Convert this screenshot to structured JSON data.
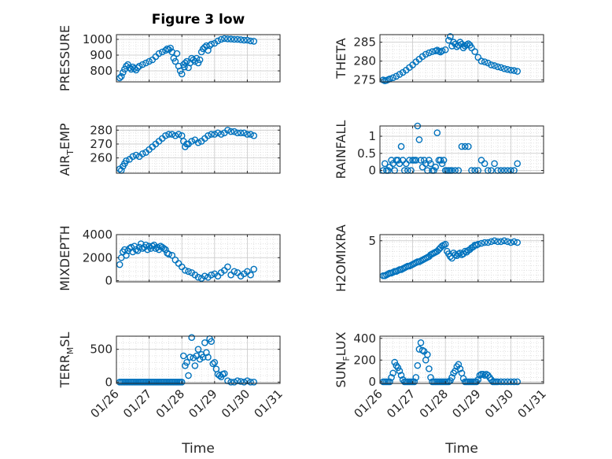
{
  "figure": {
    "title": "Figure 3 low",
    "marker_color": "#0072BD",
    "x_tick_labels": [
      "01/26",
      "01/27",
      "01/28",
      "01/29",
      "01/30",
      "01/31"
    ],
    "x_label": "Time"
  },
  "chart_data": [
    {
      "type": "scatter",
      "name": "pressure",
      "title": "Figure 3 low",
      "ylabel": "PRESSURE",
      "xlim": [
        0,
        5
      ],
      "ylim": [
        730,
        1030
      ],
      "yticks": [
        800,
        900,
        1000
      ],
      "ytick_labels": [
        "800",
        "900",
        "1000"
      ],
      "grid": true,
      "minor_grid": true,
      "x": [
        0.1,
        0.15,
        0.2,
        0.25,
        0.3,
        0.35,
        0.4,
        0.45,
        0.5,
        0.55,
        0.6,
        0.65,
        0.7,
        0.8,
        0.9,
        1.0,
        1.1,
        1.2,
        1.3,
        1.4,
        1.5,
        1.55,
        1.6,
        1.65,
        1.7,
        1.75,
        1.8,
        1.85,
        1.9,
        1.95,
        2.0,
        2.05,
        2.08,
        2.1,
        2.15,
        2.2,
        2.25,
        2.3,
        2.35,
        2.4,
        2.45,
        2.5,
        2.55,
        2.6,
        2.65,
        2.7,
        2.75,
        2.8,
        2.85,
        2.9,
        3.0,
        3.1,
        3.2,
        3.3,
        3.4,
        3.5,
        3.6,
        3.7,
        3.8,
        3.9,
        4.0,
        4.1,
        4.2
      ],
      "y": [
        755,
        765,
        790,
        810,
        830,
        840,
        820,
        810,
        825,
        815,
        805,
        820,
        830,
        840,
        850,
        860,
        870,
        890,
        910,
        920,
        930,
        940,
        935,
        945,
        920,
        880,
        860,
        910,
        830,
        800,
        780,
        840,
        825,
        850,
        860,
        820,
        850,
        880,
        870,
        860,
        880,
        850,
        870,
        920,
        940,
        950,
        960,
        930,
        960,
        970,
        975,
        990,
        1000,
        1005,
        1003,
        1002,
        1000,
        1000,
        998,
        995,
        995,
        990,
        988
      ]
    },
    {
      "type": "scatter",
      "name": "theta",
      "ylabel": "THETA",
      "xlim": [
        0,
        5
      ],
      "ylim": [
        274.5,
        287
      ],
      "yticks": [
        275,
        280,
        285
      ],
      "ytick_labels": [
        "275",
        "280",
        "285"
      ],
      "grid": true,
      "minor_grid": true,
      "x": [
        0.1,
        0.15,
        0.2,
        0.25,
        0.3,
        0.4,
        0.5,
        0.6,
        0.7,
        0.8,
        0.9,
        1.0,
        1.1,
        1.2,
        1.3,
        1.4,
        1.5,
        1.6,
        1.7,
        1.75,
        1.8,
        1.85,
        1.9,
        2.0,
        2.1,
        2.15,
        2.2,
        2.25,
        2.3,
        2.35,
        2.4,
        2.45,
        2.5,
        2.55,
        2.6,
        2.65,
        2.7,
        2.75,
        2.8,
        2.9,
        3.0,
        3.1,
        3.2,
        3.3,
        3.4,
        3.5,
        3.6,
        3.7,
        3.8,
        3.9,
        4.0,
        4.1,
        4.2
      ],
      "y": [
        275.0,
        274.8,
        274.9,
        275.1,
        275.3,
        275.6,
        276.0,
        276.5,
        277.0,
        277.6,
        278.3,
        279.0,
        279.8,
        280.5,
        281.2,
        281.8,
        282.2,
        282.5,
        282.7,
        282.9,
        282.6,
        282.4,
        282.7,
        283.0,
        285.5,
        286.5,
        284.0,
        285.0,
        284.5,
        283.8,
        284.2,
        285.0,
        284.5,
        283.5,
        284.0,
        284.3,
        284.6,
        284.2,
        283.5,
        282.5,
        281.0,
        280.0,
        279.8,
        279.5,
        279.0,
        278.8,
        278.5,
        278.3,
        278.0,
        277.8,
        277.6,
        277.5,
        277.3
      ]
    },
    {
      "type": "scatter",
      "name": "air_temp",
      "ylabel": "AIR_TEMP",
      "ylabel_main": "AIR",
      "ylabel_sub": "T",
      "ylabel_tail": "EMP",
      "xlim": [
        0,
        5
      ],
      "ylim": [
        249,
        283
      ],
      "yticks": [
        260,
        270,
        280
      ],
      "ytick_labels": [
        "260",
        "270",
        "280"
      ],
      "grid": true,
      "minor_grid": true,
      "x": [
        0.1,
        0.15,
        0.2,
        0.25,
        0.3,
        0.4,
        0.5,
        0.6,
        0.7,
        0.8,
        0.9,
        1.0,
        1.1,
        1.2,
        1.3,
        1.4,
        1.5,
        1.6,
        1.7,
        1.8,
        1.9,
        2.0,
        2.05,
        2.1,
        2.15,
        2.2,
        2.3,
        2.4,
        2.5,
        2.6,
        2.7,
        2.8,
        2.9,
        3.0,
        3.1,
        3.2,
        3.3,
        3.4,
        3.5,
        3.6,
        3.7,
        3.8,
        3.9,
        4.0,
        4.1,
        4.2
      ],
      "y": [
        252,
        251,
        254,
        256,
        258,
        259,
        261,
        262,
        261,
        263,
        264,
        266,
        268,
        270,
        272,
        274,
        276,
        277,
        277,
        276,
        277,
        276,
        272,
        268,
        270,
        270,
        272,
        273,
        271,
        272,
        274,
        276,
        277,
        277,
        278,
        277,
        278,
        280,
        279,
        279,
        278,
        278,
        278,
        277,
        277,
        276
      ]
    },
    {
      "type": "scatter",
      "name": "rainfall",
      "ylabel": "RAINFALL",
      "xlim": [
        0,
        5
      ],
      "ylim": [
        -0.08,
        1.3
      ],
      "yticks": [
        0,
        0.5,
        1
      ],
      "ytick_labels": [
        "0",
        "0.5",
        "1"
      ],
      "grid": true,
      "minor_grid": true,
      "x": [
        0.1,
        0.15,
        0.2,
        0.25,
        0.3,
        0.35,
        0.4,
        0.45,
        0.5,
        0.55,
        0.6,
        0.65,
        0.7,
        0.75,
        0.8,
        0.85,
        0.9,
        0.95,
        1.0,
        1.05,
        1.1,
        1.15,
        1.2,
        1.25,
        1.3,
        1.35,
        1.4,
        1.45,
        1.5,
        1.55,
        1.6,
        1.65,
        1.7,
        1.75,
        1.8,
        1.85,
        1.9,
        1.95,
        2.0,
        2.05,
        2.1,
        2.15,
        2.2,
        2.3,
        2.4,
        2.5,
        2.6,
        2.7,
        2.8,
        2.9,
        3.0,
        3.1,
        3.2,
        3.3,
        3.4,
        3.5,
        3.6,
        3.7,
        3.8,
        3.9,
        4.0,
        4.1,
        4.2
      ],
      "y": [
        0.0,
        0.2,
        0.0,
        0.0,
        0.1,
        0.3,
        0.2,
        0.0,
        0.3,
        0.3,
        0.2,
        0.7,
        0.3,
        0.0,
        0.2,
        0.0,
        0.3,
        0.0,
        0.3,
        0.3,
        0.3,
        1.3,
        0.9,
        0.3,
        0.1,
        0.3,
        0.2,
        0.0,
        0.3,
        0.2,
        0.0,
        0.0,
        0.1,
        1.1,
        0.3,
        0.3,
        0.2,
        0.3,
        0.0,
        0.0,
        0.0,
        0.0,
        0.0,
        0.0,
        0.0,
        0.7,
        0.7,
        0.7,
        0.0,
        0.0,
        0.0,
        0.3,
        0.2,
        0.0,
        0.0,
        0.2,
        0.0,
        0.0,
        0.0,
        0.0,
        0.0,
        0.0,
        0.2
      ]
    },
    {
      "type": "scatter",
      "name": "mixdepth",
      "ylabel": "MIXDEPTH",
      "xlim": [
        0,
        5
      ],
      "ylim": [
        -100,
        4000
      ],
      "yticks": [
        0,
        2000,
        4000
      ],
      "ytick_labels": [
        "0",
        "2000",
        "4000"
      ],
      "grid": true,
      "minor_grid": true,
      "x": [
        0.1,
        0.15,
        0.2,
        0.25,
        0.3,
        0.35,
        0.4,
        0.45,
        0.5,
        0.55,
        0.6,
        0.65,
        0.7,
        0.75,
        0.8,
        0.85,
        0.9,
        0.95,
        1.0,
        1.05,
        1.1,
        1.15,
        1.2,
        1.25,
        1.3,
        1.35,
        1.4,
        1.45,
        1.5,
        1.55,
        1.6,
        1.7,
        1.8,
        1.9,
        2.0,
        2.1,
        2.2,
        2.3,
        2.4,
        2.5,
        2.6,
        2.7,
        2.8,
        2.9,
        3.0,
        3.1,
        3.2,
        3.3,
        3.4,
        3.5,
        3.6,
        3.7,
        3.8,
        3.9,
        4.0,
        4.1,
        4.2
      ],
      "y": [
        1400,
        2000,
        2500,
        2700,
        2200,
        2600,
        2800,
        2900,
        2500,
        3000,
        2700,
        2600,
        2900,
        3200,
        2800,
        2900,
        3100,
        2700,
        3000,
        2800,
        3000,
        3100,
        2800,
        2900,
        2700,
        3000,
        2900,
        2800,
        2700,
        2400,
        2300,
        2200,
        1800,
        1500,
        1200,
        900,
        800,
        700,
        500,
        300,
        200,
        400,
        300,
        500,
        600,
        400,
        700,
        900,
        1200,
        500,
        800,
        700,
        400,
        600,
        800,
        500,
        1000
      ]
    },
    {
      "type": "scatter",
      "name": "h2omixra",
      "ylabel": "H2OMIXRA",
      "xlim": [
        0,
        5
      ],
      "ylim": [
        0.3,
        5.7
      ],
      "yticks": [
        5
      ],
      "ytick_labels": [
        "5"
      ],
      "grid": true,
      "minor_grid": true,
      "x": [
        0.1,
        0.15,
        0.2,
        0.25,
        0.3,
        0.35,
        0.4,
        0.45,
        0.5,
        0.55,
        0.6,
        0.65,
        0.7,
        0.75,
        0.8,
        0.85,
        0.9,
        0.95,
        1.0,
        1.05,
        1.1,
        1.15,
        1.2,
        1.25,
        1.3,
        1.35,
        1.4,
        1.45,
        1.5,
        1.55,
        1.6,
        1.65,
        1.7,
        1.75,
        1.8,
        1.85,
        1.9,
        1.95,
        2.0,
        2.05,
        2.1,
        2.15,
        2.2,
        2.25,
        2.3,
        2.35,
        2.4,
        2.45,
        2.5,
        2.55,
        2.6,
        2.65,
        2.7,
        2.75,
        2.8,
        2.85,
        2.9,
        2.95,
        3.0,
        3.1,
        3.2,
        3.3,
        3.4,
        3.5,
        3.6,
        3.7,
        3.8,
        3.9,
        4.0,
        4.1,
        4.2
      ],
      "y": [
        1.0,
        1.0,
        1.1,
        1.2,
        1.3,
        1.3,
        1.4,
        1.5,
        1.5,
        1.6,
        1.7,
        1.7,
        1.8,
        1.9,
        2.0,
        2.1,
        2.1,
        2.2,
        2.3,
        2.4,
        2.5,
        2.6,
        2.6,
        2.7,
        2.8,
        2.9,
        3.0,
        3.1,
        3.2,
        3.4,
        3.5,
        3.6,
        3.7,
        3.8,
        4.0,
        4.2,
        4.4,
        4.5,
        4.6,
        3.8,
        3.5,
        3.2,
        3.0,
        3.6,
        3.4,
        3.3,
        3.5,
        3.6,
        3.4,
        3.5,
        3.8,
        3.7,
        3.9,
        4.0,
        4.2,
        4.3,
        4.5,
        4.5,
        4.6,
        4.7,
        4.8,
        4.8,
        4.9,
        5.0,
        4.9,
        4.9,
        5.0,
        4.9,
        4.8,
        4.9,
        4.8
      ]
    },
    {
      "type": "scatter",
      "name": "terr_msl",
      "ylabel": "TERR_MSL",
      "ylabel_main": "TERR",
      "ylabel_sub": "M",
      "ylabel_tail": "SL",
      "xlim": [
        0,
        5
      ],
      "ylim": [
        -20,
        700
      ],
      "yticks": [
        0,
        500
      ],
      "ytick_labels": [
        "0",
        "500"
      ],
      "grid": true,
      "minor_grid": true,
      "x": [
        0.1,
        0.15,
        0.2,
        0.25,
        0.3,
        0.35,
        0.4,
        0.45,
        0.5,
        0.55,
        0.6,
        0.65,
        0.7,
        0.75,
        0.8,
        0.85,
        0.9,
        0.95,
        1.0,
        1.05,
        1.1,
        1.15,
        1.2,
        1.25,
        1.3,
        1.35,
        1.4,
        1.45,
        1.5,
        1.55,
        1.6,
        1.65,
        1.7,
        1.75,
        1.8,
        1.85,
        1.9,
        1.95,
        2.0,
        2.05,
        2.1,
        2.15,
        2.2,
        2.25,
        2.3,
        2.35,
        2.4,
        2.45,
        2.5,
        2.55,
        2.6,
        2.65,
        2.7,
        2.75,
        2.8,
        2.85,
        2.9,
        2.95,
        3.0,
        3.05,
        3.1,
        3.15,
        3.2,
        3.25,
        3.3,
        3.4,
        3.5,
        3.6,
        3.7,
        3.8,
        3.9,
        4.0,
        4.1,
        4.2
      ],
      "y": [
        0,
        0,
        0,
        0,
        0,
        0,
        0,
        0,
        0,
        0,
        0,
        0,
        0,
        0,
        0,
        0,
        0,
        0,
        0,
        0,
        0,
        0,
        0,
        0,
        0,
        0,
        0,
        0,
        0,
        0,
        0,
        0,
        0,
        0,
        0,
        0,
        0,
        0,
        0,
        400,
        250,
        300,
        100,
        380,
        680,
        370,
        250,
        400,
        500,
        350,
        420,
        380,
        600,
        450,
        380,
        660,
        620,
        280,
        300,
        200,
        120,
        100,
        80,
        120,
        130,
        20,
        0,
        0,
        20,
        10,
        0,
        20,
        0,
        0
      ]
    },
    {
      "type": "scatter",
      "name": "sun_flux",
      "ylabel": "SUN_FLUX",
      "ylabel_main": "SUN",
      "ylabel_sub": "F",
      "ylabel_tail": "LUX",
      "xlim": [
        0,
        5
      ],
      "ylim": [
        -15,
        420
      ],
      "yticks": [
        0,
        200,
        400
      ],
      "ytick_labels": [
        "0",
        "200",
        "400"
      ],
      "grid": true,
      "minor_grid": true,
      "x": [
        0.1,
        0.15,
        0.2,
        0.25,
        0.3,
        0.35,
        0.4,
        0.45,
        0.5,
        0.55,
        0.6,
        0.65,
        0.7,
        0.75,
        0.8,
        0.85,
        0.9,
        0.95,
        1.0,
        1.05,
        1.1,
        1.15,
        1.2,
        1.25,
        1.3,
        1.35,
        1.4,
        1.45,
        1.5,
        1.55,
        1.6,
        1.65,
        1.7,
        1.75,
        1.8,
        1.85,
        1.9,
        1.95,
        2.0,
        2.05,
        2.1,
        2.15,
        2.2,
        2.25,
        2.3,
        2.35,
        2.4,
        2.45,
        2.5,
        2.55,
        2.6,
        2.65,
        2.7,
        2.75,
        2.8,
        2.85,
        2.9,
        2.95,
        3.0,
        3.05,
        3.1,
        3.15,
        3.2,
        3.25,
        3.3,
        3.35,
        3.4,
        3.45,
        3.5,
        3.55,
        3.6,
        3.7,
        3.8,
        3.9,
        4.0,
        4.1,
        4.2
      ],
      "y": [
        0,
        0,
        0,
        0,
        0,
        40,
        80,
        180,
        150,
        130,
        100,
        60,
        20,
        0,
        0,
        0,
        0,
        0,
        0,
        0,
        40,
        150,
        300,
        360,
        290,
        280,
        200,
        250,
        120,
        40,
        0,
        0,
        0,
        0,
        0,
        0,
        0,
        0,
        0,
        0,
        0,
        10,
        40,
        80,
        100,
        140,
        160,
        120,
        80,
        30,
        0,
        0,
        0,
        0,
        0,
        0,
        0,
        0,
        20,
        60,
        70,
        70,
        60,
        70,
        60,
        40,
        20,
        0,
        0,
        0,
        0,
        0,
        0,
        0,
        0,
        0,
        0
      ]
    }
  ]
}
